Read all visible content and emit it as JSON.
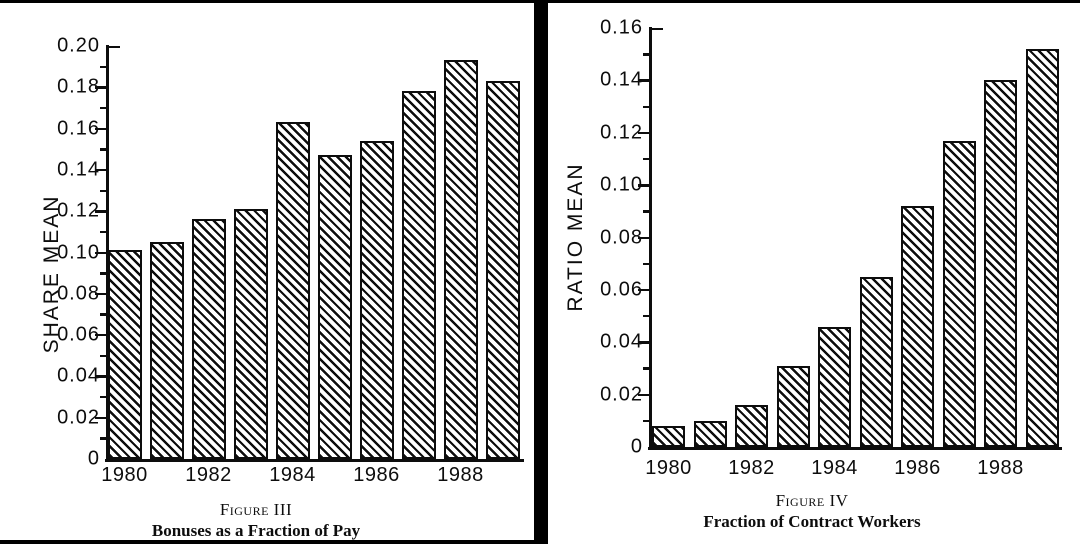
{
  "page": {
    "background": "#ffffff",
    "ink": "#0d0d0d",
    "frame_color": "#000000"
  },
  "chart_data": [
    {
      "type": "bar",
      "figure_label": "Figure III",
      "title": "Bonuses as a Fraction of Pay",
      "ylabel": "SHARE MEAN",
      "xlabel": "",
      "categories": [
        "1980",
        "1981",
        "1982",
        "1983",
        "1984",
        "1985",
        "1986",
        "1987",
        "1988",
        "1989"
      ],
      "values": [
        0.101,
        0.105,
        0.116,
        0.121,
        0.163,
        0.147,
        0.154,
        0.178,
        0.193,
        0.183
      ],
      "x_tick_labels": [
        "1980",
        "1982",
        "1984",
        "1986",
        "1988"
      ],
      "ylim": [
        0,
        0.2
      ],
      "ytick_labels": [
        "0",
        "0.02",
        "0.04",
        "0.06",
        "0.08",
        "0.10",
        "0.12",
        "0.14",
        "0.16",
        "0.18",
        "0.20"
      ],
      "ytick_step": 0.02,
      "minor_tick_step": 0.01,
      "grid": false,
      "legend": "none",
      "bar_style": "diagonal-hatch"
    },
    {
      "type": "bar",
      "figure_label": "Figure IV",
      "title": "Fraction of Contract Workers",
      "ylabel": "RATIO MEAN",
      "xlabel": "",
      "categories": [
        "1980",
        "1981",
        "1982",
        "1983",
        "1984",
        "1985",
        "1986",
        "1987",
        "1988",
        "1989"
      ],
      "values": [
        0.008,
        0.01,
        0.016,
        0.031,
        0.046,
        0.065,
        0.092,
        0.117,
        0.14,
        0.152
      ],
      "x_tick_labels": [
        "1980",
        "1982",
        "1984",
        "1986",
        "1988"
      ],
      "ylim": [
        0,
        0.16
      ],
      "ytick_labels": [
        "0",
        "0.02",
        "0.04",
        "0.06",
        "0.08",
        "0.10",
        "0.12",
        "0.14",
        "0.16"
      ],
      "ytick_step": 0.02,
      "minor_tick_step": 0.01,
      "grid": false,
      "legend": "none",
      "bar_style": "diagonal-hatch"
    }
  ]
}
